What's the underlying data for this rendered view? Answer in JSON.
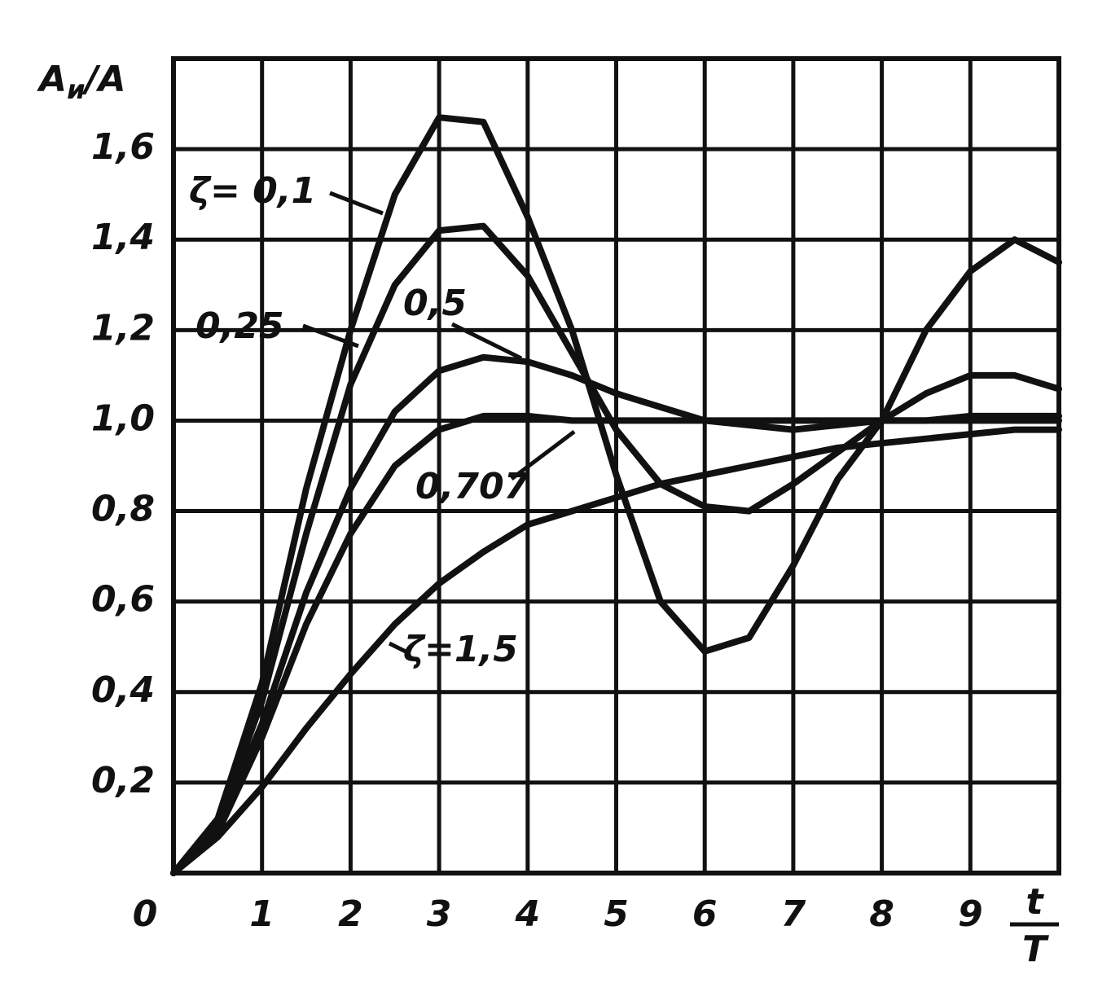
{
  "chart_data": {
    "type": "line",
    "y_label": {
      "base": "A",
      "sub": "и",
      "rest": "/A"
    },
    "x_label": {
      "numerator": "t",
      "denominator": "T"
    },
    "x": [
      0,
      0.5,
      1,
      1.5,
      2,
      2.5,
      3,
      3.5,
      4,
      4.5,
      5,
      5.5,
      6,
      6.5,
      7,
      7.5,
      8,
      8.5,
      9,
      9.5,
      10
    ],
    "series": [
      {
        "name": "ζ= 0,1",
        "color": "#111111",
        "values": [
          0,
          0.12,
          0.42,
          0.85,
          1.2,
          1.5,
          1.67,
          1.66,
          1.45,
          1.2,
          0.88,
          0.6,
          0.49,
          0.52,
          0.68,
          0.87,
          1.0,
          1.2,
          1.33,
          1.4,
          1.35
        ]
      },
      {
        "name": "0,25",
        "color": "#111111",
        "values": [
          0,
          0.11,
          0.38,
          0.75,
          1.08,
          1.3,
          1.42,
          1.43,
          1.32,
          1.15,
          0.98,
          0.86,
          0.81,
          0.8,
          0.86,
          0.93,
          1.0,
          1.06,
          1.1,
          1.1,
          1.07
        ]
      },
      {
        "name": "0,5",
        "color": "#111111",
        "values": [
          0,
          0.1,
          0.33,
          0.62,
          0.85,
          1.02,
          1.11,
          1.14,
          1.13,
          1.1,
          1.06,
          1.03,
          1.0,
          0.99,
          0.98,
          0.99,
          1.0,
          1.0,
          1.01,
          1.01,
          1.01
        ]
      },
      {
        "name": "0,707",
        "color": "#111111",
        "values": [
          0,
          0.09,
          0.3,
          0.55,
          0.75,
          0.9,
          0.98,
          1.01,
          1.01,
          1.0,
          1.0,
          1.0,
          1.0,
          1.0,
          1.0,
          1.0,
          1.0,
          1.0,
          1.0,
          1.0,
          1.0
        ]
      },
      {
        "name": "ζ=1,5",
        "color": "#111111",
        "values": [
          0,
          0.08,
          0.19,
          0.32,
          0.44,
          0.55,
          0.64,
          0.71,
          0.77,
          0.8,
          0.83,
          0.86,
          0.88,
          0.9,
          0.92,
          0.94,
          0.95,
          0.96,
          0.97,
          0.98,
          0.98
        ]
      }
    ],
    "xlim": [
      0,
      10
    ],
    "ylim": [
      0,
      1.8
    ],
    "xticks": [
      0,
      1,
      2,
      3,
      4,
      5,
      6,
      7,
      8,
      9
    ],
    "yticks": [
      {
        "value": 0.2,
        "label": "0,2"
      },
      {
        "value": 0.4,
        "label": "0,4"
      },
      {
        "value": 0.6,
        "label": "0,6"
      },
      {
        "value": 0.8,
        "label": "0,8"
      },
      {
        "value": 1.0,
        "label": "1,0"
      },
      {
        "value": 1.2,
        "label": "1,2"
      },
      {
        "value": 1.4,
        "label": "1,4"
      },
      {
        "value": 1.6,
        "label": "1,6"
      }
    ],
    "grid": true
  }
}
